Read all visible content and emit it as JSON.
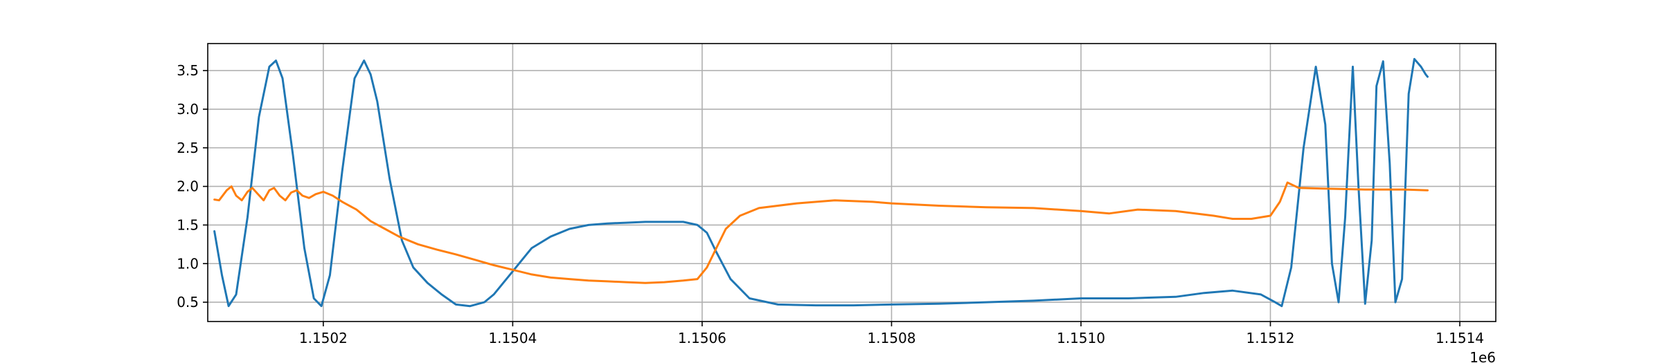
{
  "chart_data": {
    "type": "line",
    "title": "",
    "xlabel": "",
    "ylabel": "",
    "x_offset_label": "1e6",
    "xlim": [
      1.150078,
      1.151438
    ],
    "ylim": [
      0.25,
      3.85
    ],
    "grid": true,
    "x_ticks": [
      1.1502,
      1.1504,
      1.1506,
      1.1508,
      1.151,
      1.1512,
      1.1514
    ],
    "x_tick_labels": [
      "1.1502",
      "1.1504",
      "1.1506",
      "1.1508",
      "1.1510",
      "1.1512",
      "1.1514"
    ],
    "y_ticks": [
      0.5,
      1.0,
      1.5,
      2.0,
      2.5,
      3.0,
      3.5
    ],
    "y_tick_labels": [
      "0.5",
      "1.0",
      "1.5",
      "2.0",
      "2.5",
      "3.0",
      "3.5"
    ],
    "series": [
      {
        "color": "#1f77b4",
        "x": [
          1.150085,
          1.150093,
          1.1501,
          1.150108,
          1.15012,
          1.150132,
          1.150143,
          1.15015,
          1.150157,
          1.150168,
          1.15018,
          1.15019,
          1.150198,
          1.150207,
          1.15022,
          1.150233,
          1.150243,
          1.15025,
          1.150257,
          1.15027,
          1.150283,
          1.150295,
          1.15031,
          1.150325,
          1.15034,
          1.150355,
          1.15037,
          1.15038,
          1.1504,
          1.15042,
          1.15044,
          1.15046,
          1.15048,
          1.1505,
          1.15052,
          1.15054,
          1.15056,
          1.15058,
          1.150595,
          1.150605,
          1.150615,
          1.15063,
          1.15065,
          1.15068,
          1.15072,
          1.15076,
          1.1508,
          1.15085,
          1.1509,
          1.15095,
          1.151,
          1.15105,
          1.1511,
          1.15113,
          1.15116,
          1.15119,
          1.151205,
          1.151212,
          1.151222,
          1.151235,
          1.151248,
          1.151258,
          1.151265,
          1.151272,
          1.151279,
          1.151287,
          1.151293,
          1.1513,
          1.151307,
          1.151312,
          1.151319,
          1.151326,
          1.151332,
          1.151339,
          1.151346,
          1.151352,
          1.151359,
          1.151364,
          1.151366
        ],
        "y": [
          1.42,
          0.85,
          0.45,
          0.6,
          1.6,
          2.9,
          3.55,
          3.63,
          3.4,
          2.4,
          1.2,
          0.55,
          0.45,
          0.85,
          2.2,
          3.4,
          3.63,
          3.45,
          3.1,
          2.1,
          1.3,
          0.95,
          0.75,
          0.6,
          0.47,
          0.45,
          0.5,
          0.6,
          0.9,
          1.2,
          1.35,
          1.45,
          1.5,
          1.52,
          1.53,
          1.54,
          1.54,
          1.54,
          1.5,
          1.4,
          1.15,
          0.8,
          0.55,
          0.47,
          0.46,
          0.46,
          0.47,
          0.48,
          0.5,
          0.52,
          0.55,
          0.55,
          0.57,
          0.62,
          0.65,
          0.6,
          0.5,
          0.45,
          0.95,
          2.5,
          3.55,
          2.8,
          1.0,
          0.5,
          1.6,
          3.55,
          2.0,
          0.48,
          1.3,
          3.3,
          3.62,
          2.3,
          0.5,
          0.8,
          3.2,
          3.65,
          3.55,
          3.45,
          3.42
        ]
      },
      {
        "color": "#ff7f0e",
        "x": [
          1.150085,
          1.15009,
          1.150098,
          1.150103,
          1.150108,
          1.150114,
          1.15012,
          1.150125,
          1.150131,
          1.150137,
          1.150143,
          1.150148,
          1.150154,
          1.15016,
          1.150166,
          1.150172,
          1.150178,
          1.150185,
          1.150192,
          1.1502,
          1.15021,
          1.15022,
          1.150235,
          1.15025,
          1.150265,
          1.15028,
          1.1503,
          1.15032,
          1.15034,
          1.15036,
          1.15038,
          1.1504,
          1.15042,
          1.15044,
          1.15046,
          1.15048,
          1.1505,
          1.15052,
          1.15054,
          1.15056,
          1.15058,
          1.150595,
          1.150605,
          1.150615,
          1.150625,
          1.15064,
          1.15066,
          1.1507,
          1.15074,
          1.15078,
          1.1508,
          1.15085,
          1.1509,
          1.15095,
          1.151,
          1.15103,
          1.15106,
          1.1511,
          1.15114,
          1.15116,
          1.15118,
          1.1512,
          1.15121,
          1.151218,
          1.15123,
          1.15126,
          1.1513,
          1.15134,
          1.151366
        ],
        "y": [
          1.83,
          1.82,
          1.95,
          2.0,
          1.88,
          1.82,
          1.93,
          1.98,
          1.9,
          1.82,
          1.95,
          1.98,
          1.88,
          1.82,
          1.92,
          1.95,
          1.88,
          1.85,
          1.9,
          1.93,
          1.88,
          1.8,
          1.7,
          1.55,
          1.45,
          1.35,
          1.25,
          1.18,
          1.12,
          1.05,
          0.98,
          0.92,
          0.86,
          0.82,
          0.8,
          0.78,
          0.77,
          0.76,
          0.75,
          0.76,
          0.78,
          0.8,
          0.95,
          1.2,
          1.45,
          1.62,
          1.72,
          1.78,
          1.82,
          1.8,
          1.78,
          1.75,
          1.73,
          1.72,
          1.68,
          1.65,
          1.7,
          1.68,
          1.62,
          1.58,
          1.58,
          1.62,
          1.8,
          2.05,
          1.98,
          1.97,
          1.96,
          1.96,
          1.95
        ]
      }
    ]
  }
}
